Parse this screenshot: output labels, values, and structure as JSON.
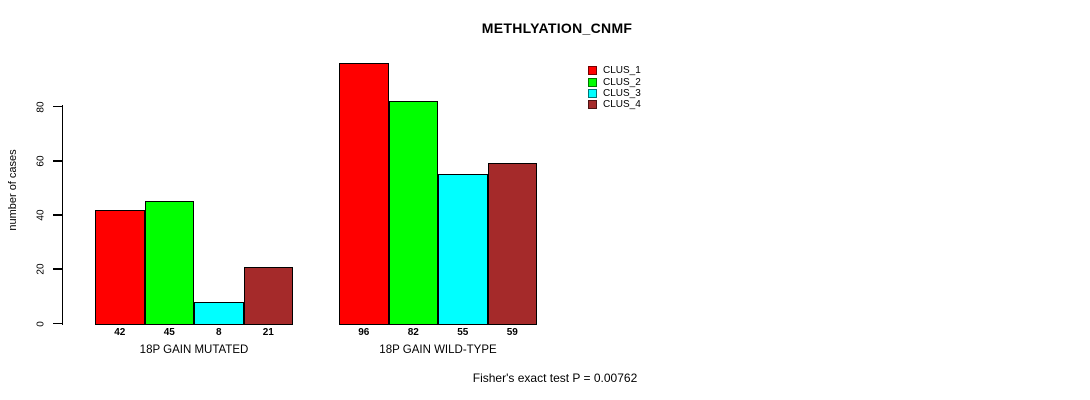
{
  "chart_data": {
    "type": "bar",
    "title": "METHLYATION_CNMF",
    "xlabel": "",
    "ylabel": "number of cases",
    "ylim": [
      0,
      100
    ],
    "yticks": [
      0,
      20,
      40,
      60,
      80
    ],
    "grid": false,
    "legend_position": "top-right",
    "categories": [
      "18P GAIN MUTATED",
      "18P GAIN WILD-TYPE"
    ],
    "series": [
      {
        "name": "CLUS_1",
        "color": "#ff0000",
        "values": [
          42,
          96
        ]
      },
      {
        "name": "CLUS_2",
        "color": "#00ff00",
        "values": [
          45,
          82
        ]
      },
      {
        "name": "CLUS_3",
        "color": "#00ffff",
        "values": [
          8,
          55
        ]
      },
      {
        "name": "CLUS_4",
        "color": "#a52a2a",
        "values": [
          21,
          59
        ]
      }
    ],
    "annotation": "Fisher's exact test P = 0.00762"
  }
}
